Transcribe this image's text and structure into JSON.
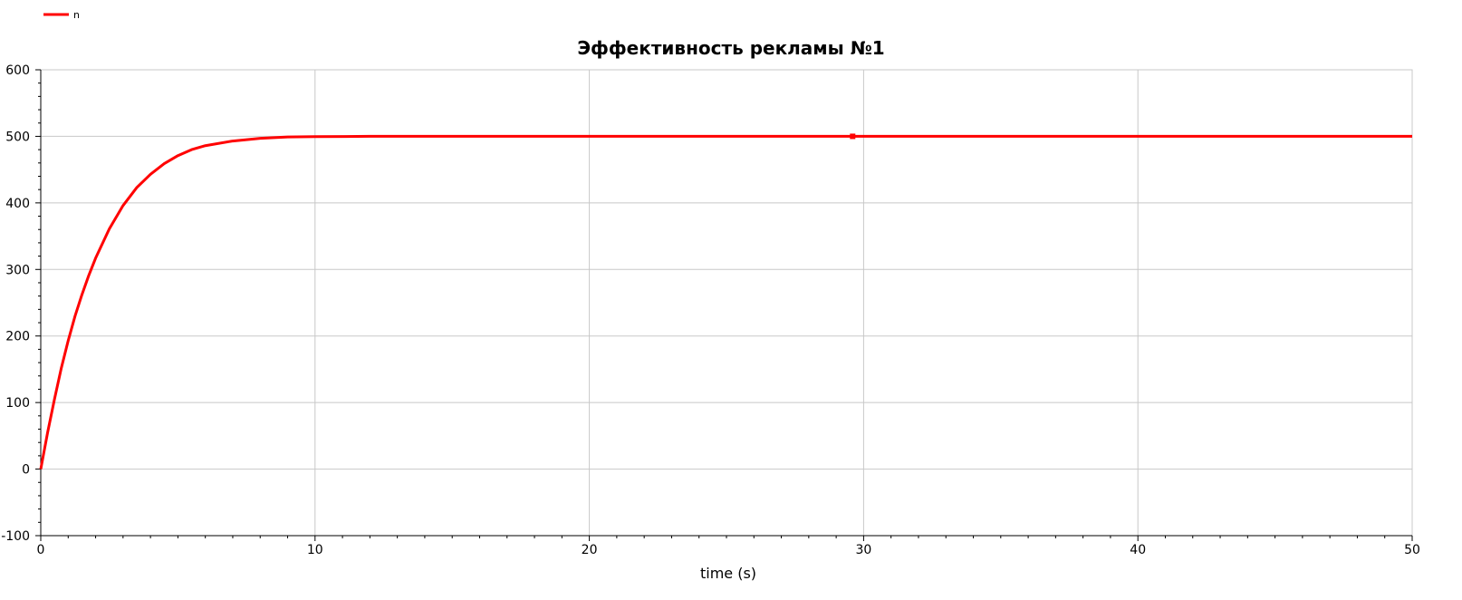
{
  "chart_data": {
    "type": "line",
    "title": "Эффективность рекламы №1",
    "xlabel": "time (s)",
    "ylabel": "",
    "xlim": [
      0,
      50
    ],
    "ylim": [
      -100,
      600
    ],
    "xticks": [
      0,
      10,
      20,
      30,
      40,
      50
    ],
    "yticks": [
      -100,
      0,
      100,
      200,
      300,
      400,
      500,
      600
    ],
    "grid": true,
    "legend_position": "top-left",
    "line_color": "#ff0000",
    "series": [
      {
        "name": "n",
        "x": [
          0,
          0.25,
          0.5,
          0.75,
          1,
          1.25,
          1.5,
          1.75,
          2,
          2.5,
          3,
          3.5,
          4,
          4.5,
          5,
          5.5,
          6,
          7,
          8,
          9,
          10,
          12,
          15,
          20,
          25,
          30,
          35,
          40,
          45,
          50
        ],
        "y": [
          0,
          55,
          105,
          152,
          193,
          230,
          262,
          291,
          317,
          361,
          396,
          423,
          443,
          459,
          471,
          480,
          486,
          493,
          497,
          499,
          499.5,
          500,
          500,
          500,
          500,
          500,
          500,
          500,
          500,
          500
        ]
      }
    ],
    "marker": {
      "x": 29.6,
      "y": 500
    }
  }
}
